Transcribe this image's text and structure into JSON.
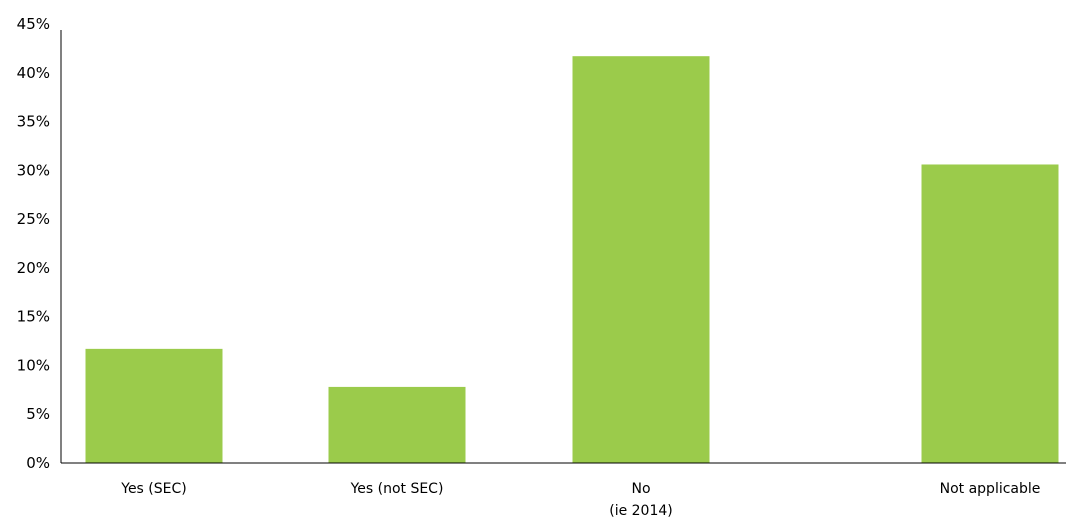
{
  "chart_data": {
    "type": "bar",
    "categories": [
      [
        "Yes (SEC)"
      ],
      [
        "Yes (not SEC)"
      ],
      [
        "No",
        "(ie 2014)"
      ],
      [
        "Not applicable"
      ]
    ],
    "values": [
      11.7,
      7.8,
      41.7,
      30.6
    ],
    "ylim": [
      0,
      45
    ],
    "ytick_step": 5,
    "yticks": [
      "0%",
      "5%",
      "10%",
      "15%",
      "20%",
      "25%",
      "30%",
      "35%",
      "40%",
      "45%"
    ],
    "bar_color": "#9bcb4b",
    "axis_color": "#000000",
    "grid": false,
    "legend": "none"
  }
}
